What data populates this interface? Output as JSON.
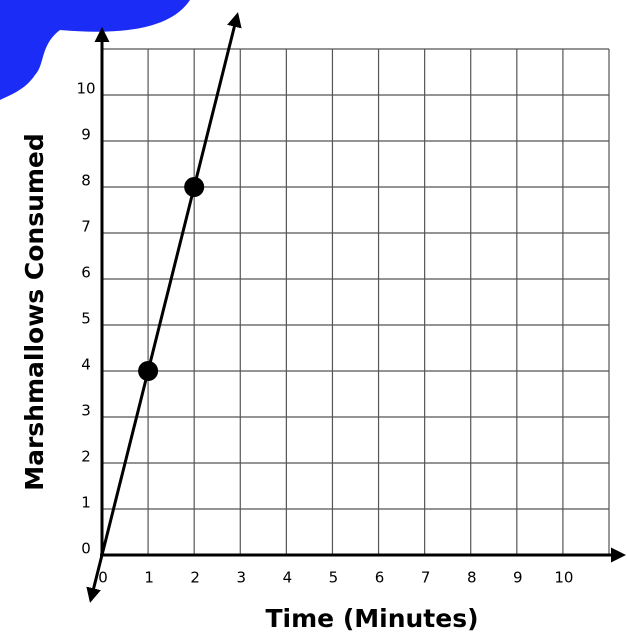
{
  "chart_data": {
    "type": "line",
    "x_label": "Time (Minutes)",
    "y_label": "Marshmallows Consumed",
    "series": [
      {
        "color": "#000000",
        "x": [
          1,
          2
        ],
        "values": [
          4,
          8
        ]
      }
    ],
    "xlim": [
      0,
      11
    ],
    "ylim": [
      0,
      11
    ],
    "xticks": [
      0,
      1,
      2,
      3,
      4,
      5,
      6,
      7,
      8,
      9,
      10
    ],
    "yticks": [
      0,
      1,
      2,
      3,
      4,
      5,
      6,
      7,
      8,
      9,
      10
    ],
    "grid": true
  }
}
